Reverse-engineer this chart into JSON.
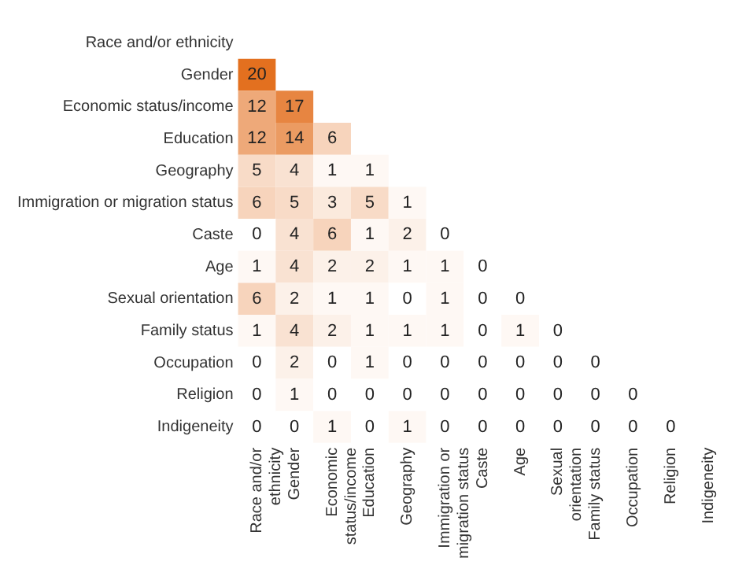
{
  "chart_data": {
    "type": "heatmap",
    "color": "#e3701f",
    "data_labels": true,
    "grid": false,
    "categories": [
      "Race and/or ethnicity",
      "Gender",
      "Economic status/income",
      "Education",
      "Geography",
      "Immigration or migration status",
      "Caste",
      "Age",
      "Sexual orientation",
      "Family status",
      "Occupation",
      "Religion",
      "Indigeneity"
    ],
    "y_categories": [
      "Race and/or ethnicity",
      "Gender",
      "Economic status/income",
      "Education",
      "Geography",
      "Immigration or migration status",
      "Caste",
      "Age",
      "Sexual orientation",
      "Family status",
      "Occupation",
      "Religion",
      "Indigeneity"
    ],
    "cells": [
      [
        null,
        null,
        null,
        null,
        null,
        null,
        null,
        null,
        null,
        null,
        null,
        null,
        null
      ],
      [
        20,
        null,
        null,
        null,
        null,
        null,
        null,
        null,
        null,
        null,
        null,
        null,
        null
      ],
      [
        12,
        17,
        null,
        null,
        null,
        null,
        null,
        null,
        null,
        null,
        null,
        null,
        null
      ],
      [
        12,
        14,
        6,
        null,
        null,
        null,
        null,
        null,
        null,
        null,
        null,
        null,
        null
      ],
      [
        5,
        4,
        1,
        1,
        null,
        null,
        null,
        null,
        null,
        null,
        null,
        null,
        null
      ],
      [
        6,
        5,
        3,
        5,
        1,
        null,
        null,
        null,
        null,
        null,
        null,
        null,
        null
      ],
      [
        0,
        4,
        6,
        1,
        2,
        0,
        null,
        null,
        null,
        null,
        null,
        null,
        null
      ],
      [
        1,
        4,
        2,
        2,
        1,
        1,
        0,
        null,
        null,
        null,
        null,
        null,
        null
      ],
      [
        6,
        2,
        1,
        1,
        0,
        1,
        0,
        0,
        null,
        null,
        null,
        null,
        null
      ],
      [
        1,
        4,
        2,
        1,
        1,
        1,
        0,
        1,
        0,
        null,
        null,
        null,
        null
      ],
      [
        0,
        2,
        0,
        1,
        0,
        0,
        0,
        0,
        0,
        0,
        null,
        null,
        null
      ],
      [
        0,
        1,
        0,
        0,
        0,
        0,
        0,
        0,
        0,
        0,
        0,
        null,
        null
      ],
      [
        0,
        0,
        1,
        0,
        1,
        0,
        0,
        0,
        0,
        0,
        0,
        0,
        null
      ]
    ]
  }
}
